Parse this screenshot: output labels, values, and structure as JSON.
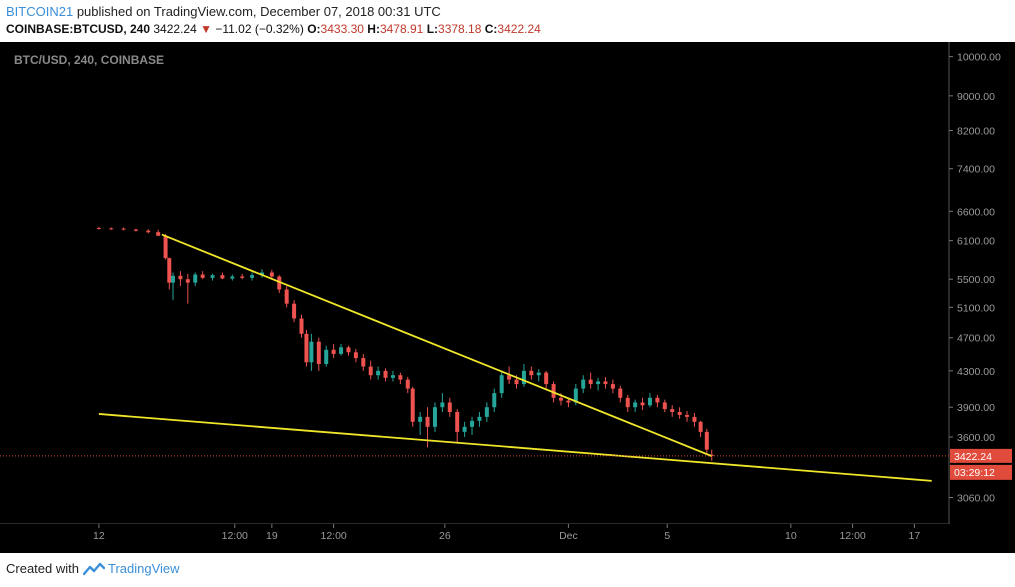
{
  "header": {
    "user": "BITCOIN21",
    "published": "published on TradingView.com, December 07, 2018 00:31 UTC",
    "symbol": "COINBASE:BTCUSD, 240",
    "last": "3422.24",
    "change_arrow": "▼",
    "change": "−11.02 (−0.32%)",
    "o_label": "O:",
    "o": "3433.30",
    "h_label": "H:",
    "h": "3478.91",
    "l_label": "L:",
    "l": "3378.18",
    "c_label": "C:",
    "c": "3422.24"
  },
  "footer": {
    "created_with": "Created with",
    "brand": "TradingView"
  },
  "colors": {
    "up": "#26a69a",
    "down": "#ef5350",
    "trendline": "#f0e62a",
    "price_tag": "#e04b3c",
    "background": "#000000"
  },
  "chart_data": {
    "type": "candlestick",
    "title": "BTC/USD, 240, COINBASE",
    "y_scale": "log",
    "ylim": [
      2850,
      10400
    ],
    "yticks": [
      10000,
      9000,
      8200,
      7400,
      6600,
      6100,
      5500,
      5100,
      4700,
      4300,
      3900,
      3600,
      3060
    ],
    "ytick_labels": [
      "10000.00",
      "9000.00",
      "8200.00",
      "7400.00",
      "6600.00",
      "6100.00",
      "5500.00",
      "5100.00",
      "4700.00",
      "4300.00",
      "3900.00",
      "3600.00",
      "3060.00"
    ],
    "xlim_days": [
      11.9,
      22.9
    ],
    "xticks": [
      {
        "label": "12",
        "day": 12.0
      },
      {
        "label": "12:00",
        "day": 17.5
      },
      {
        "label": "19",
        "day": 19.0
      },
      {
        "label": "12:00",
        "day": 21.5
      },
      {
        "label": "26",
        "day": 26.0
      },
      {
        "label": "Dec",
        "day": 31.0
      },
      {
        "label": "5",
        "day": 35.0
      },
      {
        "label": "10",
        "day": 40.0
      },
      {
        "label": "12:00",
        "day": 42.5
      },
      {
        "label": "17",
        "day": 45.0
      }
    ],
    "last_price": 3422.24,
    "last_price_label": "3422.24",
    "countdown_label": "03:29:12",
    "trendlines": [
      {
        "from": {
          "day": 14.55,
          "price": 6200
        },
        "to": {
          "day": 36.8,
          "price": 3420
        }
      },
      {
        "from": {
          "day": 12.0,
          "price": 3830
        },
        "to": {
          "day": 45.7,
          "price": 3200
        }
      }
    ],
    "candles": [
      [
        12.0,
        6310,
        6330,
        6290,
        6305
      ],
      [
        12.5,
        6305,
        6320,
        6280,
        6300
      ],
      [
        13.0,
        6300,
        6318,
        6270,
        6285
      ],
      [
        13.5,
        6285,
        6300,
        6250,
        6265
      ],
      [
        14.0,
        6265,
        6290,
        6220,
        6240
      ],
      [
        14.4,
        6240,
        6280,
        6200,
        6180
      ],
      [
        14.7,
        6180,
        6210,
        5800,
        5820
      ],
      [
        14.85,
        5820,
        5830,
        5350,
        5450
      ],
      [
        15.0,
        5450,
        5600,
        5200,
        5550
      ],
      [
        15.3,
        5550,
        5620,
        5400,
        5500
      ],
      [
        15.6,
        5500,
        5580,
        5150,
        5450
      ],
      [
        15.9,
        5450,
        5600,
        5400,
        5570
      ],
      [
        16.2,
        5570,
        5620,
        5500,
        5520
      ],
      [
        16.6,
        5520,
        5580,
        5480,
        5560
      ],
      [
        17.0,
        5560,
        5600,
        5500,
        5510
      ],
      [
        17.4,
        5510,
        5570,
        5480,
        5540
      ],
      [
        17.8,
        5540,
        5580,
        5500,
        5520
      ],
      [
        18.2,
        5520,
        5600,
        5480,
        5560
      ],
      [
        18.6,
        5560,
        5650,
        5520,
        5600
      ],
      [
        19.0,
        5600,
        5640,
        5520,
        5540
      ],
      [
        19.3,
        5540,
        5560,
        5300,
        5350
      ],
      [
        19.6,
        5350,
        5400,
        5100,
        5150
      ],
      [
        19.9,
        5150,
        5200,
        4900,
        4950
      ],
      [
        20.2,
        4950,
        5000,
        4700,
        4750
      ],
      [
        20.4,
        4750,
        4800,
        4350,
        4400
      ],
      [
        20.6,
        4400,
        4750,
        4300,
        4650
      ],
      [
        20.9,
        4650,
        4700,
        4300,
        4380
      ],
      [
        21.2,
        4380,
        4600,
        4350,
        4550
      ],
      [
        21.5,
        4550,
        4620,
        4450,
        4500
      ],
      [
        21.8,
        4500,
        4620,
        4480,
        4580
      ],
      [
        22.1,
        4580,
        4600,
        4480,
        4520
      ],
      [
        22.4,
        4520,
        4560,
        4400,
        4450
      ],
      [
        22.7,
        4450,
        4500,
        4300,
        4350
      ],
      [
        23.0,
        4350,
        4420,
        4200,
        4250
      ],
      [
        23.3,
        4250,
        4350,
        4200,
        4300
      ],
      [
        23.6,
        4300,
        4330,
        4180,
        4220
      ],
      [
        23.9,
        4220,
        4300,
        4180,
        4250
      ],
      [
        24.2,
        4250,
        4280,
        4150,
        4200
      ],
      [
        24.5,
        4200,
        4230,
        4050,
        4100
      ],
      [
        24.7,
        4100,
        4120,
        3700,
        3750
      ],
      [
        25.0,
        3750,
        3850,
        3620,
        3800
      ],
      [
        25.3,
        3800,
        3900,
        3500,
        3700
      ],
      [
        25.6,
        3700,
        3950,
        3650,
        3900
      ],
      [
        25.9,
        3900,
        4050,
        3850,
        3950
      ],
      [
        26.2,
        3950,
        4000,
        3800,
        3850
      ],
      [
        26.5,
        3850,
        3880,
        3550,
        3650
      ],
      [
        26.8,
        3650,
        3750,
        3600,
        3700
      ],
      [
        27.1,
        3700,
        3800,
        3620,
        3760
      ],
      [
        27.4,
        3760,
        3850,
        3700,
        3800
      ],
      [
        27.7,
        3800,
        3950,
        3750,
        3900
      ],
      [
        28.0,
        3900,
        4100,
        3850,
        4050
      ],
      [
        28.3,
        4050,
        4300,
        4000,
        4250
      ],
      [
        28.6,
        4250,
        4350,
        4150,
        4200
      ],
      [
        28.9,
        4200,
        4250,
        4100,
        4150
      ],
      [
        29.2,
        4150,
        4380,
        4120,
        4300
      ],
      [
        29.5,
        4300,
        4350,
        4200,
        4250
      ],
      [
        29.8,
        4250,
        4320,
        4180,
        4280
      ],
      [
        30.1,
        4280,
        4300,
        4100,
        4150
      ],
      [
        30.4,
        4150,
        4180,
        3950,
        4000
      ],
      [
        30.7,
        4000,
        4050,
        3920,
        3970
      ],
      [
        31.0,
        3970,
        4000,
        3900,
        3950
      ],
      [
        31.3,
        3950,
        4150,
        3920,
        4100
      ],
      [
        31.6,
        4100,
        4250,
        4050,
        4200
      ],
      [
        31.9,
        4200,
        4280,
        4100,
        4150
      ],
      [
        32.2,
        4150,
        4220,
        4080,
        4180
      ],
      [
        32.5,
        4180,
        4230,
        4100,
        4150
      ],
      [
        32.8,
        4150,
        4200,
        4050,
        4100
      ],
      [
        33.1,
        4100,
        4130,
        3950,
        4000
      ],
      [
        33.4,
        4000,
        4030,
        3850,
        3900
      ],
      [
        33.7,
        3900,
        3980,
        3850,
        3950
      ],
      [
        34.0,
        3950,
        4000,
        3870,
        3920
      ],
      [
        34.3,
        3920,
        4050,
        3900,
        4000
      ],
      [
        34.6,
        4000,
        4030,
        3900,
        3950
      ],
      [
        34.9,
        3950,
        3980,
        3850,
        3880
      ],
      [
        35.2,
        3880,
        3920,
        3800,
        3850
      ],
      [
        35.5,
        3850,
        3900,
        3780,
        3820
      ],
      [
        35.8,
        3820,
        3860,
        3750,
        3800
      ],
      [
        36.1,
        3800,
        3840,
        3700,
        3750
      ],
      [
        36.35,
        3750,
        3760,
        3600,
        3650
      ],
      [
        36.6,
        3650,
        3680,
        3450,
        3480
      ],
      [
        36.8,
        3433,
        3479,
        3378,
        3422
      ]
    ]
  }
}
